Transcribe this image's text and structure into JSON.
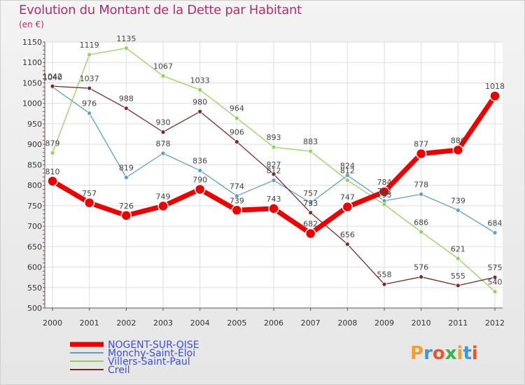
{
  "title": "Evolution du Montant de la Dette par Habitant",
  "subtitle": "(en €)",
  "logo": {
    "text": "Proxiti",
    "letters": [
      "P",
      "r",
      "o",
      "x",
      "i",
      "t",
      "i"
    ],
    "colors": [
      "#f0a030",
      "#3a9ad8",
      "#e05a2a",
      "#3ab34a",
      "#f0a030",
      "#3a9ad8",
      "#e05a2a"
    ]
  },
  "chart_data": {
    "type": "line",
    "x": [
      "2000",
      "2001",
      "2002",
      "2003",
      "2004",
      "2005",
      "2006",
      "2007",
      "2008",
      "2009",
      "2010",
      "2011",
      "2012"
    ],
    "ylim": [
      500,
      1150
    ],
    "yticks": [
      500,
      550,
      600,
      650,
      700,
      750,
      800,
      850,
      900,
      950,
      1000,
      1050,
      1100,
      1150
    ],
    "grid": true,
    "legend_position": "bottom-left",
    "series": [
      {
        "name": "NOGENT-SUR-OISE",
        "color": "#ee0000",
        "width": 7,
        "marker": 7,
        "values": [
          810,
          757,
          726,
          749,
          790,
          739,
          743,
          682,
          747,
          784,
          877,
          886,
          1018
        ],
        "labels": [
          "810",
          "757",
          "726",
          "749",
          "790",
          "739",
          "743",
          "682",
          "747",
          "784",
          "877",
          "886",
          "1018"
        ]
      },
      {
        "name": "Monchy-Saint-Éloi",
        "color": "#5b9fd3",
        "width": 1.3,
        "marker": 3,
        "values": [
          1040,
          976,
          819,
          878,
          836,
          774,
          812,
          757,
          824,
          762,
          778,
          739,
          684
        ],
        "labels": [
          "1040",
          "976",
          "819",
          "878",
          "836",
          "774",
          "812",
          "757",
          "824",
          "762",
          "778",
          "739",
          "684"
        ]
      },
      {
        "name": "Villers-Saint-Paul",
        "color": "#8fd45a",
        "width": 1.3,
        "marker": 3,
        "values": [
          879,
          1119,
          1135,
          1067,
          1033,
          964,
          893,
          883,
          812,
          753,
          686,
          621,
          540
        ],
        "labels": [
          "879",
          "1119",
          "1135",
          "1067",
          "1033",
          "964",
          "893",
          "883",
          "812",
          "753",
          "686",
          "621",
          "540"
        ]
      },
      {
        "name": "Creil",
        "color": "#7b2a2a",
        "width": 1.3,
        "marker": 3,
        "values": [
          1042,
          1037,
          988,
          930,
          980,
          906,
          827,
          733,
          656,
          558,
          576,
          555,
          575
        ],
        "labels": [
          "1042",
          "1037",
          "988",
          "930",
          "980",
          "906",
          "827",
          "733",
          "656",
          "558",
          "576",
          "555",
          "575"
        ]
      }
    ]
  }
}
